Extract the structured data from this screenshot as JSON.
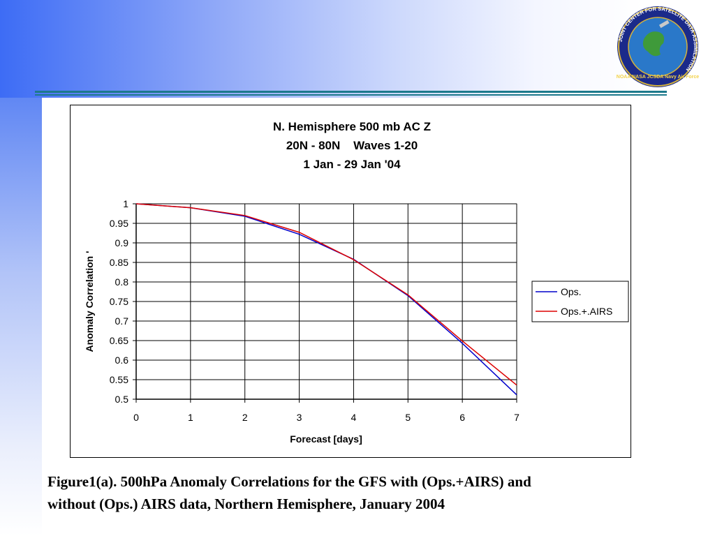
{
  "colors": {
    "header_gradient_start": "#3d6cf5",
    "rule": "#1d7a8c",
    "ops": "#0000cc",
    "ops_airs": "#dd0000"
  },
  "logo": {
    "icon": "jcsda-seal-icon",
    "ring_text": "JOINT CENTER FOR SATELLITE DATA ASSIMILATION",
    "bottom_text": "NOAA NASA JCSDA Navy Air Force"
  },
  "chart_data": {
    "type": "line",
    "title_lines": [
      "N. Hemisphere 500 mb AC Z",
      "20N - 80N    Waves 1-20",
      "1 Jan - 29 Jan '04"
    ],
    "xlabel": "Forecast [days]",
    "ylabel": "Anomaly Correlation '",
    "x": [
      0,
      1,
      2,
      3,
      4,
      5,
      6,
      7
    ],
    "xlim": [
      0,
      7
    ],
    "ylim": [
      0.5,
      1
    ],
    "x_ticks": [
      "0",
      "1",
      "2",
      "3",
      "4",
      "5",
      "6",
      "7"
    ],
    "y_ticks": [
      "0.5",
      "0.55",
      "0.6",
      "0.65",
      "0.7",
      "0.75",
      "0.8",
      "0.85",
      "0.9",
      "0.95",
      "1"
    ],
    "grid": true,
    "legend_position": "right",
    "series": [
      {
        "name": "Ops.",
        "color": "#0000cc",
        "values": [
          1.0,
          0.99,
          0.968,
          0.922,
          0.858,
          0.765,
          0.643,
          0.511
        ]
      },
      {
        "name": "Ops.+.AIRS",
        "color": "#dd0000",
        "values": [
          1.0,
          0.99,
          0.97,
          0.927,
          0.857,
          0.767,
          0.649,
          0.536
        ]
      }
    ]
  },
  "caption": {
    "line1": "Figure1(a). 500hPa Anomaly Correlations for the GFS with (Ops.+AIRS) and",
    "line2": "without (Ops.) AIRS data, Northern Hemisphere, January 2004"
  }
}
